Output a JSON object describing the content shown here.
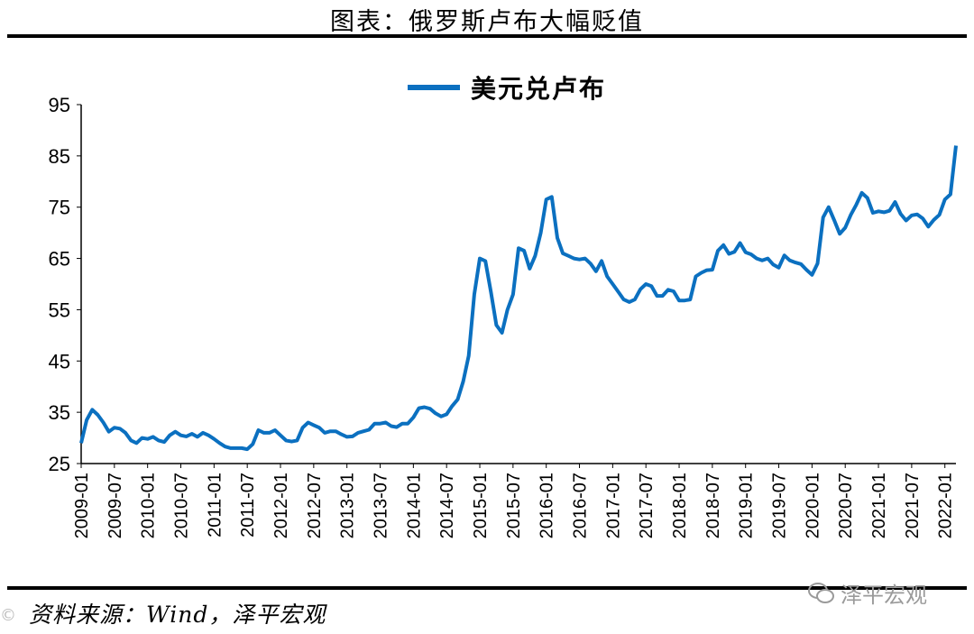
{
  "header": {
    "title": "图表：俄罗斯卢布大幅贬值"
  },
  "footer": {
    "source": "资料来源：Wind，泽平宏观",
    "watermark": "泽平宏观",
    "corner_mark": "©"
  },
  "chart_data": {
    "type": "line",
    "title": "",
    "xlabel": "",
    "ylabel": "",
    "ylim": [
      25,
      95
    ],
    "yticks": [
      25,
      35,
      45,
      55,
      65,
      75,
      85,
      95
    ],
    "xlim": [
      "2009-01",
      "2022-03"
    ],
    "xticks": [
      "2009-01",
      "2009-07",
      "2010-01",
      "2010-07",
      "2011-01",
      "2011-07",
      "2012-01",
      "2012-07",
      "2013-01",
      "2013-07",
      "2014-01",
      "2014-07",
      "2015-01",
      "2015-07",
      "2016-01",
      "2016-07",
      "2017-01",
      "2017-07",
      "2018-01",
      "2018-07",
      "2019-01",
      "2019-07",
      "2020-01",
      "2020-07",
      "2021-01",
      "2021-07",
      "2022-01"
    ],
    "legend_position": "top-center",
    "grid": false,
    "series": [
      {
        "name": "美元兑卢布",
        "color": "#0B70C0",
        "points": [
          [
            "2009-01",
            29.0
          ],
          [
            "2009-02",
            33.5
          ],
          [
            "2009-03",
            35.5
          ],
          [
            "2009-04",
            34.5
          ],
          [
            "2009-05",
            33.0
          ],
          [
            "2009-06",
            31.2
          ],
          [
            "2009-07",
            32.0
          ],
          [
            "2009-08",
            31.8
          ],
          [
            "2009-09",
            31.0
          ],
          [
            "2009-10",
            29.5
          ],
          [
            "2009-11",
            29.0
          ],
          [
            "2009-12",
            30.0
          ],
          [
            "2010-01",
            29.8
          ],
          [
            "2010-02",
            30.2
          ],
          [
            "2010-03",
            29.5
          ],
          [
            "2010-04",
            29.2
          ],
          [
            "2010-05",
            30.5
          ],
          [
            "2010-06",
            31.2
          ],
          [
            "2010-07",
            30.5
          ],
          [
            "2010-08",
            30.3
          ],
          [
            "2010-09",
            30.8
          ],
          [
            "2010-10",
            30.2
          ],
          [
            "2010-11",
            31.0
          ],
          [
            "2010-12",
            30.5
          ],
          [
            "2011-01",
            29.8
          ],
          [
            "2011-02",
            29.0
          ],
          [
            "2011-03",
            28.3
          ],
          [
            "2011-04",
            28.0
          ],
          [
            "2011-05",
            28.0
          ],
          [
            "2011-06",
            28.0
          ],
          [
            "2011-07",
            27.8
          ],
          [
            "2011-08",
            28.8
          ],
          [
            "2011-09",
            31.5
          ],
          [
            "2011-10",
            31.0
          ],
          [
            "2011-11",
            31.0
          ],
          [
            "2011-12",
            31.5
          ],
          [
            "2012-01",
            30.5
          ],
          [
            "2012-02",
            29.5
          ],
          [
            "2012-03",
            29.3
          ],
          [
            "2012-04",
            29.5
          ],
          [
            "2012-05",
            32.0
          ],
          [
            "2012-06",
            33.0
          ],
          [
            "2012-07",
            32.5
          ],
          [
            "2012-08",
            32.0
          ],
          [
            "2012-09",
            31.0
          ],
          [
            "2012-10",
            31.3
          ],
          [
            "2012-11",
            31.3
          ],
          [
            "2012-12",
            30.7
          ],
          [
            "2013-01",
            30.2
          ],
          [
            "2013-02",
            30.3
          ],
          [
            "2013-03",
            31.0
          ],
          [
            "2013-04",
            31.3
          ],
          [
            "2013-05",
            31.6
          ],
          [
            "2013-06",
            32.8
          ],
          [
            "2013-07",
            32.8
          ],
          [
            "2013-08",
            33.0
          ],
          [
            "2013-09",
            32.3
          ],
          [
            "2013-10",
            32.1
          ],
          [
            "2013-11",
            32.8
          ],
          [
            "2013-12",
            32.8
          ],
          [
            "2014-01",
            34.0
          ],
          [
            "2014-02",
            35.8
          ],
          [
            "2014-03",
            36.0
          ],
          [
            "2014-04",
            35.7
          ],
          [
            "2014-05",
            34.8
          ],
          [
            "2014-06",
            34.2
          ],
          [
            "2014-07",
            34.6
          ],
          [
            "2014-08",
            36.2
          ],
          [
            "2014-09",
            37.5
          ],
          [
            "2014-10",
            41.0
          ],
          [
            "2014-11",
            46.0
          ],
          [
            "2014-12",
            58.0
          ],
          [
            "2015-01",
            65.0
          ],
          [
            "2015-02",
            64.5
          ],
          [
            "2015-03",
            58.5
          ],
          [
            "2015-04",
            52.0
          ],
          [
            "2015-05",
            50.5
          ],
          [
            "2015-06",
            55.0
          ],
          [
            "2015-07",
            58.0
          ],
          [
            "2015-08",
            67.0
          ],
          [
            "2015-09",
            66.5
          ],
          [
            "2015-10",
            63.0
          ],
          [
            "2015-11",
            65.5
          ],
          [
            "2015-12",
            70.0
          ],
          [
            "2016-01",
            76.5
          ],
          [
            "2016-02",
            77.0
          ],
          [
            "2016-03",
            69.0
          ],
          [
            "2016-04",
            66.0
          ],
          [
            "2016-05",
            65.5
          ],
          [
            "2016-06",
            65.0
          ],
          [
            "2016-07",
            64.8
          ],
          [
            "2016-08",
            65.0
          ],
          [
            "2016-09",
            64.0
          ],
          [
            "2016-10",
            62.5
          ],
          [
            "2016-11",
            64.5
          ],
          [
            "2016-12",
            61.5
          ],
          [
            "2017-01",
            60.0
          ],
          [
            "2017-02",
            58.5
          ],
          [
            "2017-03",
            57.0
          ],
          [
            "2017-04",
            56.5
          ],
          [
            "2017-05",
            57.0
          ],
          [
            "2017-06",
            59.0
          ],
          [
            "2017-07",
            60.0
          ],
          [
            "2017-08",
            59.6
          ],
          [
            "2017-09",
            57.7
          ],
          [
            "2017-10",
            57.7
          ],
          [
            "2017-11",
            58.9
          ],
          [
            "2017-12",
            58.6
          ],
          [
            "2018-01",
            56.8
          ],
          [
            "2018-02",
            56.8
          ],
          [
            "2018-03",
            57.0
          ],
          [
            "2018-04",
            61.5
          ],
          [
            "2018-05",
            62.2
          ],
          [
            "2018-06",
            62.7
          ],
          [
            "2018-07",
            62.8
          ],
          [
            "2018-08",
            66.5
          ],
          [
            "2018-09",
            67.6
          ],
          [
            "2018-10",
            65.9
          ],
          [
            "2018-11",
            66.3
          ],
          [
            "2018-12",
            68.0
          ],
          [
            "2019-01",
            66.2
          ],
          [
            "2019-02",
            65.8
          ],
          [
            "2019-03",
            65.0
          ],
          [
            "2019-04",
            64.6
          ],
          [
            "2019-05",
            65.0
          ],
          [
            "2019-06",
            63.8
          ],
          [
            "2019-07",
            63.2
          ],
          [
            "2019-08",
            65.6
          ],
          [
            "2019-09",
            64.6
          ],
          [
            "2019-10",
            64.2
          ],
          [
            "2019-11",
            63.9
          ],
          [
            "2019-12",
            62.8
          ],
          [
            "2020-01",
            61.8
          ],
          [
            "2020-02",
            64.0
          ],
          [
            "2020-03",
            73.0
          ],
          [
            "2020-04",
            75.0
          ],
          [
            "2020-05",
            72.5
          ],
          [
            "2020-06",
            69.8
          ],
          [
            "2020-07",
            71.0
          ],
          [
            "2020-08",
            73.5
          ],
          [
            "2020-09",
            75.5
          ],
          [
            "2020-10",
            77.8
          ],
          [
            "2020-11",
            76.8
          ],
          [
            "2020-12",
            73.9
          ],
          [
            "2021-01",
            74.2
          ],
          [
            "2021-02",
            74.0
          ],
          [
            "2021-03",
            74.3
          ],
          [
            "2021-04",
            76.0
          ],
          [
            "2021-05",
            73.7
          ],
          [
            "2021-06",
            72.4
          ],
          [
            "2021-07",
            73.4
          ],
          [
            "2021-08",
            73.6
          ],
          [
            "2021-09",
            72.8
          ],
          [
            "2021-10",
            71.2
          ],
          [
            "2021-11",
            72.5
          ],
          [
            "2021-12",
            73.5
          ],
          [
            "2022-01",
            76.5
          ],
          [
            "2022-02",
            77.5
          ],
          [
            "2022-03",
            87.0
          ]
        ]
      }
    ]
  }
}
